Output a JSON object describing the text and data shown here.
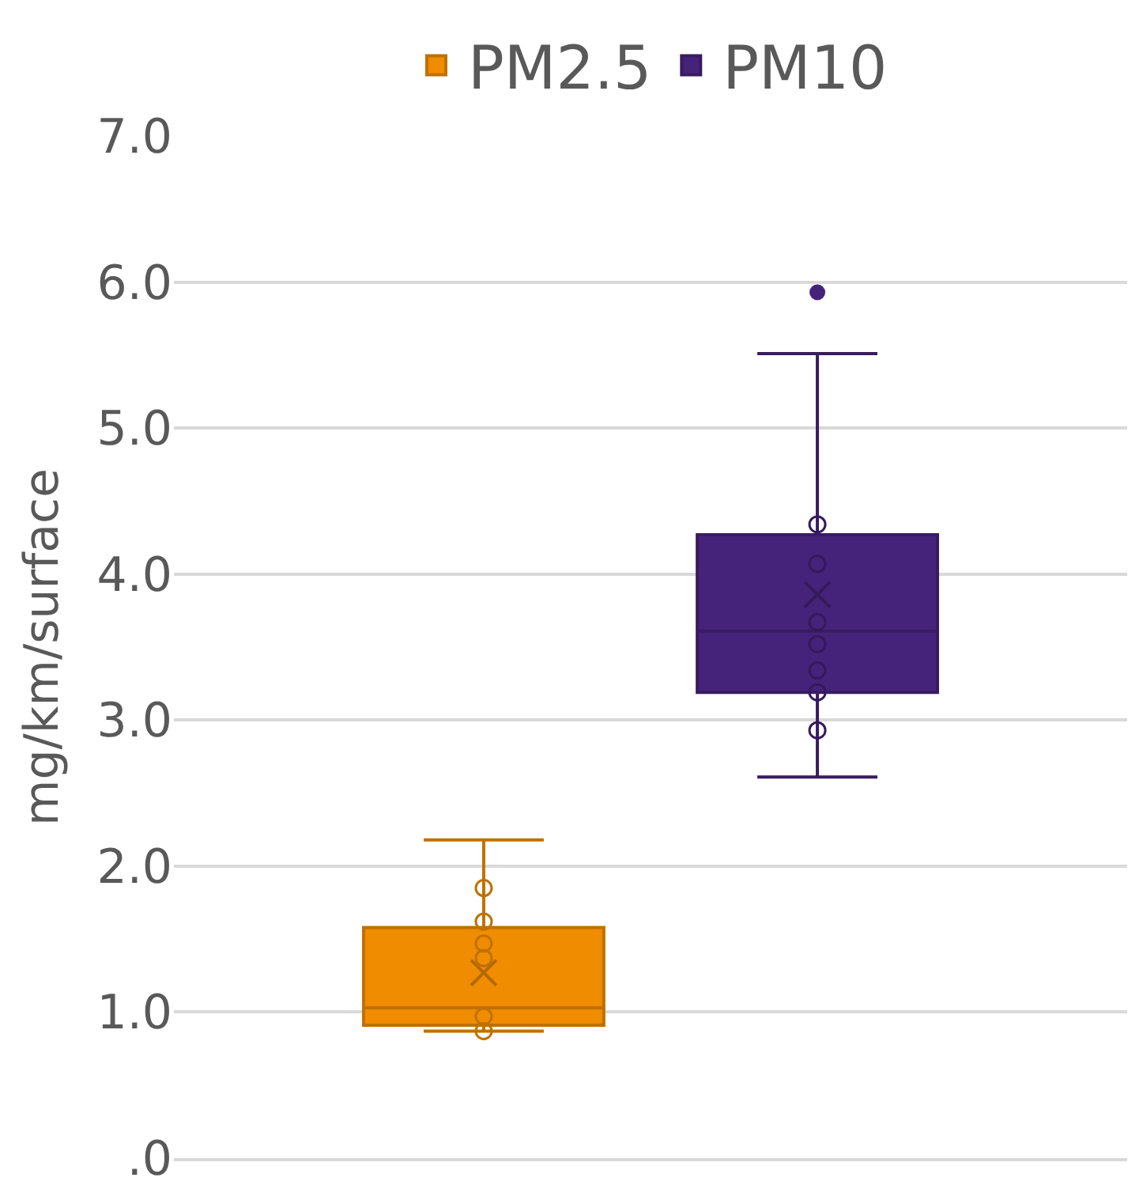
{
  "chart_data": {
    "type": "box",
    "ylabel": "mg/km/surface",
    "categories": [
      null
    ],
    "series": [
      {
        "name": "PM2.5",
        "color": "#f08c00",
        "boxes": [
          {
            "low": 0.87,
            "q1": 0.91,
            "median": 1.03,
            "q3": 1.58,
            "high": 2.18,
            "mean": 1.27
          }
        ]
      },
      {
        "name": "PM10",
        "color": "#46237a",
        "boxes": [
          {
            "low": 2.61,
            "q1": 3.19,
            "median": 3.61,
            "q3": 4.27,
            "high": 5.51,
            "mean": 3.86,
            "outliers": [
              5.93
            ]
          }
        ]
      },
      {
        "type": "scatter",
        "color": "#c07000",
        "x": [
          null,
          null,
          null,
          null,
          null,
          null
        ],
        "values": [
          1.85,
          1.62,
          1.47,
          1.37,
          0.97,
          0.87
        ]
      },
      {
        "type": "scatter",
        "color": "#341a5b",
        "x": [
          null,
          null,
          null,
          null,
          null,
          null,
          null
        ],
        "values": [
          4.34,
          4.07,
          3.67,
          3.52,
          3.34,
          3.19,
          2.93
        ]
      }
    ],
    "ylim": [
      0,
      7
    ],
    "yticks": [
      {
        "value": 0,
        "label": ".0"
      },
      {
        "value": 1,
        "label": "1.0"
      },
      {
        "value": 2,
        "label": "2.0"
      },
      {
        "value": 3,
        "label": "3.0"
      },
      {
        "value": 4,
        "label": "4.0"
      },
      {
        "value": 5,
        "label": "5.0"
      },
      {
        "value": 6,
        "label": "6.0"
      },
      {
        "value": 7,
        "label": "7.0"
      }
    ],
    "grid": "y",
    "legend": "top",
    "marker": "circle"
  }
}
